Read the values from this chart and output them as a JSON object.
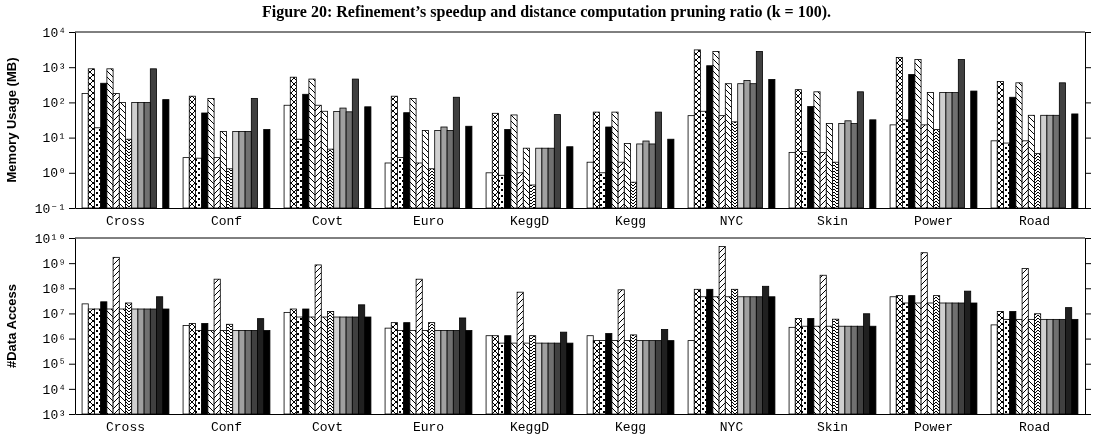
{
  "chart_data": [
    {
      "type": "bar",
      "title": "Figure 20: Refinement’s speedup and distance computation pruning ratio (k = 100).",
      "ylabel": "Memory Usage (MB)",
      "log": true,
      "ylim": [
        0.1,
        10000
      ],
      "yticks": [
        {
          "value": 0.1,
          "label": "10⁻¹"
        },
        {
          "value": 1,
          "label": "10⁰"
        },
        {
          "value": 10,
          "label": "10¹"
        },
        {
          "value": 100,
          "label": "10²"
        },
        {
          "value": 1000,
          "label": "10³"
        },
        {
          "value": 10000,
          "label": "10⁴"
        }
      ],
      "categories": [
        "Cross",
        "Conf",
        "Covt",
        "Euro",
        "KeggD",
        "Kegg",
        "NYC",
        "Skin",
        "Power",
        "Road"
      ],
      "series": [
        {
          "color": "#ffffff",
          "values": [
            180,
            2.7,
            83,
            1.9,
            1.0,
            2.0,
            42,
            3.8,
            23,
            8.1
          ]
        },
        {
          "color": "#000000",
          "values": [
            900,
            150,
            520,
            150,
            49,
            53,
            3100,
            230,
            1900,
            390
          ]
        },
        {
          "color": "#000000",
          "values": [
            19,
            2.6,
            9,
            2.7,
            0.85,
            1.0,
            56,
            4,
            32,
            7
          ]
        },
        {
          "color": "#000000",
          "values": [
            350,
            50,
            170,
            51,
            17,
            20,
            1100,
            76,
            620,
            140
          ]
        },
        {
          "color": "#000000",
          "values": [
            900,
            130,
            460,
            130,
            44,
            53,
            2800,
            200,
            1650,
            360
          ]
        },
        {
          "color": "#000000",
          "values": [
            180,
            2.7,
            83,
            1.9,
            1.0,
            2.0,
            42,
            3.8,
            23,
            8.1
          ]
        },
        {
          "color": "#000000",
          "values": [
            100,
            15,
            56,
            16,
            5,
            6.8,
            340,
            25,
            190,
            43
          ]
        },
        {
          "color": "#000000",
          "values": [
            9,
            1.3,
            4.7,
            1.3,
            0.45,
            0.54,
            28,
            2.0,
            17,
            3.5
          ]
        },
        {
          "color": "#d0d0d0",
          "values": [
            100,
            15,
            55,
            16,
            5,
            6.6,
            340,
            25,
            190,
            43
          ]
        },
        {
          "color": "#a0a0a0",
          "values": [
            100,
            15,
            69,
            20,
            5,
            8,
            420,
            30,
            190,
            43
          ]
        },
        {
          "color": "#707070",
          "values": [
            100,
            15,
            54,
            16,
            5,
            6.6,
            340,
            25,
            190,
            43
          ]
        },
        {
          "color": "#404040",
          "values": [
            900,
            130,
            460,
            140,
            45,
            53,
            2800,
            200,
            1650,
            360
          ]
        },
        {
          "color": "#202020",
          "values": [
            null,
            null,
            null,
            null,
            null,
            null,
            null,
            null,
            null,
            null
          ]
        },
        {
          "color": "#000000",
          "values": [
            120,
            17,
            75,
            21,
            5.5,
            9,
            450,
            32,
            210,
            47
          ]
        }
      ]
    },
    {
      "type": "bar",
      "ylabel": "#Data Access",
      "log": true,
      "ylim": [
        1000,
        10000000000
      ],
      "yticks": [
        {
          "value": 1000,
          "label": "10³"
        },
        {
          "value": 10000,
          "label": "10⁴"
        },
        {
          "value": 100000,
          "label": "10⁵"
        },
        {
          "value": 1000000,
          "label": "10⁶"
        },
        {
          "value": 10000000,
          "label": "10⁷"
        },
        {
          "value": 100000000,
          "label": "10⁸"
        },
        {
          "value": 1000000000,
          "label": "10⁹"
        },
        {
          "value": 10000000000,
          "label": "10¹⁰"
        }
      ],
      "categories": [
        "Cross",
        "Conf",
        "Covt",
        "Euro",
        "KeggD",
        "Kegg",
        "NYC",
        "Skin",
        "Power",
        "Road"
      ],
      "series": [
        {
          "color": "#ffffff",
          "values": [
            24000000,
            3300000,
            11000000,
            2600000,
            1300000,
            1300000,
            830000,
            2800000,
            46000000,
            3500000
          ]
        },
        {
          "color": "#000000",
          "values": [
            15000000,
            4000000,
            15000000,
            4300000,
            1300000,
            830000,
            91000000,
            6300000,
            51000000,
            12000000
          ]
        },
        {
          "color": "#000000",
          "values": [
            15000000,
            2100000,
            7200000,
            2100000,
            660000,
            830000,
            46000000,
            3100000,
            26000000,
            5800000
          ]
        },
        {
          "color": "#000000",
          "values": [
            29000000,
            4000000,
            15000000,
            4300000,
            1300000,
            1600000,
            91000000,
            6300000,
            51000000,
            12000000
          ]
        },
        {
          "color": "#000000",
          "values": [
            15000000,
            2100000,
            7200000,
            2100000,
            660000,
            830000,
            46000000,
            3100000,
            26000000,
            5800000
          ]
        },
        {
          "color": "#000000",
          "values": [
            1700000000,
            230000000,
            850000000,
            230000000,
            70000000,
            87000000,
            4600000000,
            330000000,
            2600000000,
            610000000
          ]
        },
        {
          "color": "#000000",
          "values": [
            15000000,
            2100000,
            7200000,
            2100000,
            660000,
            830000,
            46000000,
            3100000,
            26000000,
            5800000
          ]
        },
        {
          "color": "#000000",
          "values": [
            26000000,
            3700000,
            12000000,
            4300000,
            1300000,
            1400000,
            91000000,
            5900000,
            51000000,
            9700000
          ]
        },
        {
          "color": "#d0d0d0",
          "values": [
            15000000,
            2100000,
            7200000,
            2100000,
            660000,
            830000,
            46000000,
            3100000,
            26000000,
            5800000
          ]
        },
        {
          "color": "#a0a0a0",
          "values": [
            15000000,
            2100000,
            7200000,
            2100000,
            660000,
            830000,
            46000000,
            3100000,
            26000000,
            5800000
          ]
        },
        {
          "color": "#707070",
          "values": [
            15000000,
            2100000,
            7200000,
            2100000,
            660000,
            830000,
            46000000,
            3100000,
            26000000,
            5800000
          ]
        },
        {
          "color": "#404040",
          "values": [
            15000000,
            2100000,
            7200000,
            2100000,
            660000,
            830000,
            46000000,
            3100000,
            26000000,
            5800000
          ]
        },
        {
          "color": "#202020",
          "values": [
            46000000,
            6200000,
            22000000,
            6600000,
            1800000,
            2300000,
            120000000,
            9700000,
            77000000,
            17000000
          ]
        },
        {
          "color": "#000000",
          "values": [
            15000000,
            2100000,
            7200000,
            2100000,
            660000,
            830000,
            46000000,
            3100000,
            26000000,
            5800000
          ]
        }
      ]
    }
  ]
}
